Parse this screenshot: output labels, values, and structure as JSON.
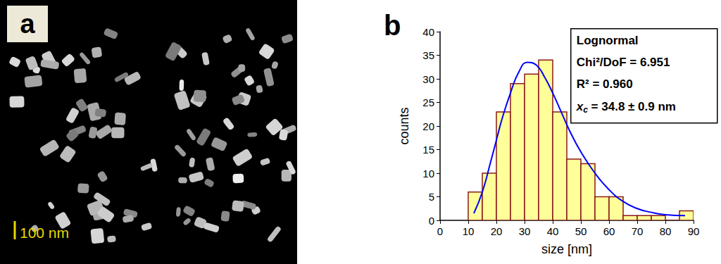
{
  "image_panel": {
    "label": "a",
    "scale_bar": "100 nm"
  },
  "chart_data": {
    "type": "histogram",
    "panel_label": "b",
    "xlabel": "size [nm]",
    "ylabel": "counts",
    "bins": [
      10,
      15,
      20,
      25,
      30,
      35,
      40,
      45,
      50,
      55,
      60,
      65,
      70,
      75,
      80,
      85,
      90
    ],
    "counts": [
      6,
      10,
      23,
      29,
      31,
      34,
      23,
      13,
      12,
      5,
      5,
      1,
      1,
      1,
      0,
      2
    ],
    "color": "#ffff99",
    "series": [
      {
        "name": "Lognormal",
        "type": "line",
        "color": "#0000ff",
        "x": [
          12,
          15,
          18,
          20,
          22,
          25,
          28,
          31,
          34,
          37,
          40,
          43,
          46,
          50,
          55,
          60,
          65,
          70,
          75,
          80,
          87
        ],
        "values": [
          1.5,
          6,
          12.5,
          17,
          21.5,
          27,
          31.5,
          33.5,
          33,
          30.5,
          27,
          23,
          19,
          14.5,
          10,
          6.5,
          4,
          2.5,
          1.7,
          1.2,
          1.0
        ]
      }
    ],
    "annotations": [
      "Chi²/DoF = 6.951",
      "R² = 0.960",
      "xc = 34.8 ± 0.9 nm"
    ],
    "xlim": [
      0,
      90
    ],
    "xticks": [
      0,
      10,
      20,
      30,
      40,
      50,
      60,
      70,
      80,
      90
    ],
    "ylim": [
      0,
      40
    ],
    "yticks": [
      0,
      5,
      10,
      15,
      20,
      25,
      30,
      35,
      40
    ],
    "grid": false
  }
}
